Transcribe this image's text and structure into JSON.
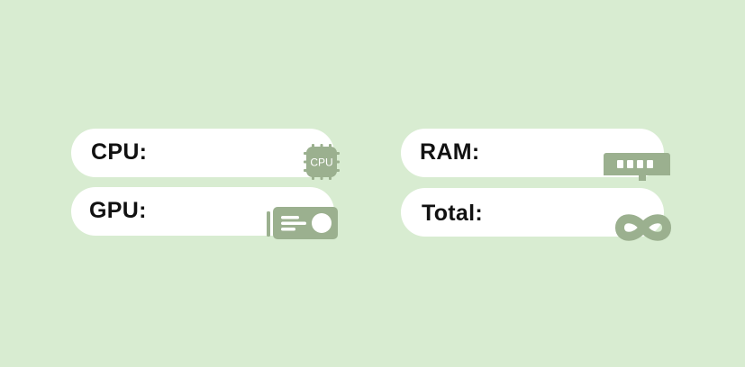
{
  "colors": {
    "background": "#d8ecd1",
    "pill": "#ffffff",
    "icon": "#9bb08f",
    "text": "#111111"
  },
  "metrics": [
    {
      "label": "CPU:",
      "icon": "cpu-chip-icon",
      "icon_text": "CPU"
    },
    {
      "label": "GPU:",
      "icon": "graphics-card-icon"
    },
    {
      "label": "RAM:",
      "icon": "ram-module-icon"
    },
    {
      "label": "Total:",
      "icon": "infinity-icon"
    }
  ]
}
